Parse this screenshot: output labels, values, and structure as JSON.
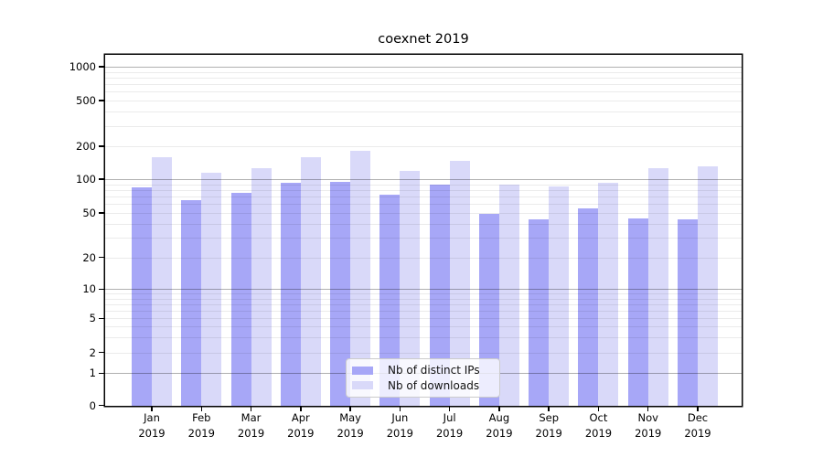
{
  "title": "coexnet 2019",
  "colors": {
    "ips_bar": "#a7a7f7",
    "downloads_bar": "#d9d9f9",
    "grid_major": "#b0b0b0",
    "grid_minor": "#ebebeb",
    "axis": "#000000",
    "legend_border": "#cccccc"
  },
  "legend": {
    "items": [
      "Nb of distinct IPs",
      "Nb of downloads"
    ]
  },
  "chart_data": {
    "type": "bar",
    "title": "coexnet 2019",
    "categories": [
      "Jan 2019",
      "Feb 2019",
      "Mar 2019",
      "Apr 2019",
      "May 2019",
      "Jun 2019",
      "Jul 2019",
      "Aug 2019",
      "Sep 2019",
      "Oct 2019",
      "Nov 2019",
      "Dec 2019"
    ],
    "series": [
      {
        "name": "Nb of distinct IPs",
        "color": "#a7a7f7",
        "values": [
          84,
          65,
          76,
          93,
          95,
          73,
          89,
          49,
          44,
          55,
          45,
          44
        ]
      },
      {
        "name": "Nb of downloads",
        "color": "#d9d9f9",
        "values": [
          160,
          115,
          125,
          160,
          181,
          118,
          146,
          89,
          86,
          92,
          125,
          130
        ]
      }
    ],
    "xlabel": "",
    "ylabel": "",
    "yscale": "symlog",
    "y_ticks": [
      0,
      1,
      2,
      5,
      10,
      20,
      50,
      100,
      200,
      500,
      1000
    ],
    "y_major_gridlines": [
      1,
      10,
      100,
      1000
    ],
    "y_minor_gridlines": [
      3,
      4,
      6,
      7,
      8,
      9,
      30,
      40,
      60,
      70,
      80,
      90,
      300,
      400,
      600,
      700,
      800,
      900
    ],
    "ylim": [
      0,
      1400
    ],
    "grid": true,
    "legend_position": "lower center"
  }
}
